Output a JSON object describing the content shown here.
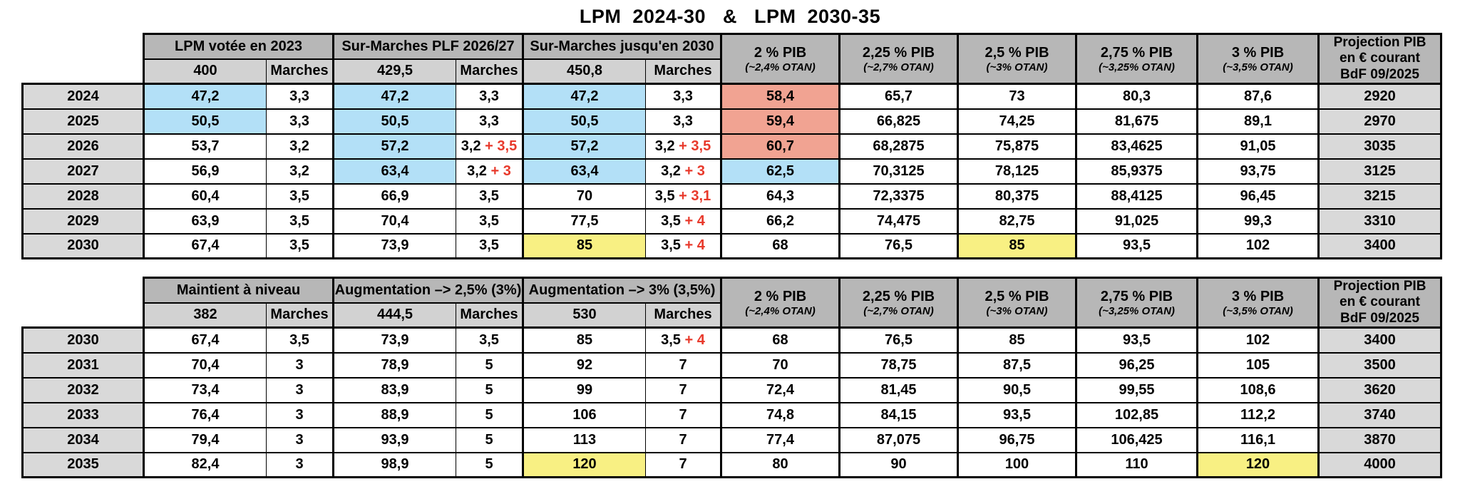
{
  "title": "LPM  2024-30   &   LPM  2030-35",
  "colors": {
    "cell_blue": "#b3e0f7",
    "cell_salmon": "#f1a392",
    "cell_yellow": "#f8f083",
    "cell_gray": "#d9d9d9",
    "header_gray": "#b7b7b7",
    "subheader_gray": "#d2d2d2",
    "red_text": "#e8392b"
  },
  "shared_header": {
    "marches_label": "Marches",
    "pib_columns": [
      {
        "label": "2 % PIB",
        "otan": "(~2,4% OTAN)"
      },
      {
        "label": "2,25 % PIB",
        "otan": "(~2,7% OTAN)"
      },
      {
        "label": "2,5 % PIB",
        "otan": "(~3% OTAN)"
      },
      {
        "label": "2,75 % PIB",
        "otan": "(~3,25% OTAN)"
      },
      {
        "label": "3 % PIB",
        "otan": "(~3,5% OTAN)"
      }
    ],
    "projection_label": "Projection PIB\nen € courant\nBdF 09/2025"
  },
  "tables": [
    {
      "name": "lpm-2024-30",
      "groups": [
        {
          "label": "LPM votée en 2023",
          "total": "400"
        },
        {
          "label": "Sur-Marches PLF 2026/27",
          "total": "429,5"
        },
        {
          "label": "Sur-Marches  jusqu'en 2030",
          "total": "450,8"
        }
      ],
      "rows": [
        {
          "year": "2024",
          "cells": [
            {
              "v": "47,2",
              "bg": "blue"
            },
            {
              "v": "3,3"
            },
            {
              "v": "47,2",
              "bg": "blue"
            },
            {
              "v": "3,3"
            },
            {
              "v": "47,2",
              "bg": "blue"
            },
            {
              "v": "3,3"
            },
            {
              "v": "58,4",
              "bg": "salmon"
            },
            {
              "v": "65,7"
            },
            {
              "v": "73"
            },
            {
              "v": "80,3"
            },
            {
              "v": "87,6"
            },
            {
              "v": "2920",
              "bg": "gray"
            }
          ]
        },
        {
          "year": "2025",
          "cells": [
            {
              "v": "50,5",
              "bg": "blue"
            },
            {
              "v": "3,3"
            },
            {
              "v": "50,5",
              "bg": "blue"
            },
            {
              "v": "3,3"
            },
            {
              "v": "50,5",
              "bg": "blue"
            },
            {
              "v": "3,3"
            },
            {
              "v": "59,4",
              "bg": "salmon"
            },
            {
              "v": "66,825"
            },
            {
              "v": "74,25"
            },
            {
              "v": "81,675"
            },
            {
              "v": "89,1"
            },
            {
              "v": "2970",
              "bg": "gray"
            }
          ]
        },
        {
          "year": "2026",
          "cells": [
            {
              "v": "53,7"
            },
            {
              "v": "3,2"
            },
            {
              "v": "57,2",
              "bg": "blue"
            },
            {
              "v": "3,2",
              "r": "+ 3,5"
            },
            {
              "v": "57,2",
              "bg": "blue"
            },
            {
              "v": "3,2",
              "r": "+ 3,5"
            },
            {
              "v": "60,7",
              "bg": "salmon"
            },
            {
              "v": "68,2875"
            },
            {
              "v": "75,875"
            },
            {
              "v": "83,4625"
            },
            {
              "v": "91,05"
            },
            {
              "v": "3035",
              "bg": "gray"
            }
          ]
        },
        {
          "year": "2027",
          "cells": [
            {
              "v": "56,9"
            },
            {
              "v": "3,2"
            },
            {
              "v": "63,4",
              "bg": "blue"
            },
            {
              "v": "3,2",
              "r": "+ 3"
            },
            {
              "v": "63,4",
              "bg": "blue"
            },
            {
              "v": "3,2",
              "r": "+ 3"
            },
            {
              "v": "62,5",
              "bg": "blue"
            },
            {
              "v": "70,3125"
            },
            {
              "v": "78,125"
            },
            {
              "v": "85,9375"
            },
            {
              "v": "93,75"
            },
            {
              "v": "3125",
              "bg": "gray"
            }
          ]
        },
        {
          "year": "2028",
          "cells": [
            {
              "v": "60,4"
            },
            {
              "v": "3,5"
            },
            {
              "v": "66,9"
            },
            {
              "v": "3,5"
            },
            {
              "v": "70"
            },
            {
              "v": "3,5",
              "r": "+ 3,1"
            },
            {
              "v": "64,3"
            },
            {
              "v": "72,3375"
            },
            {
              "v": "80,375"
            },
            {
              "v": "88,4125"
            },
            {
              "v": "96,45"
            },
            {
              "v": "3215",
              "bg": "gray"
            }
          ]
        },
        {
          "year": "2029",
          "cells": [
            {
              "v": "63,9"
            },
            {
              "v": "3,5"
            },
            {
              "v": "70,4"
            },
            {
              "v": "3,5"
            },
            {
              "v": "77,5"
            },
            {
              "v": "3,5",
              "r": "+ 4"
            },
            {
              "v": "66,2"
            },
            {
              "v": "74,475"
            },
            {
              "v": "82,75"
            },
            {
              "v": "91,025"
            },
            {
              "v": "99,3"
            },
            {
              "v": "3310",
              "bg": "gray"
            }
          ]
        },
        {
          "year": "2030",
          "cells": [
            {
              "v": "67,4"
            },
            {
              "v": "3,5"
            },
            {
              "v": "73,9"
            },
            {
              "v": "3,5"
            },
            {
              "v": "85",
              "bg": "yellow"
            },
            {
              "v": "3,5",
              "r": "+ 4"
            },
            {
              "v": "68"
            },
            {
              "v": "76,5"
            },
            {
              "v": "85",
              "bg": "yellow"
            },
            {
              "v": "93,5"
            },
            {
              "v": "102"
            },
            {
              "v": "3400",
              "bg": "gray"
            }
          ]
        }
      ]
    },
    {
      "name": "lpm-2030-35",
      "groups": [
        {
          "label": "Maintient à niveau",
          "total": "382"
        },
        {
          "label": "Augmentation –>  2,5%  (3%)",
          "total": "444,5"
        },
        {
          "label": "Augmentation –>  3%  (3,5%)",
          "total": "530"
        }
      ],
      "rows": [
        {
          "year": "2030",
          "cells": [
            {
              "v": "67,4"
            },
            {
              "v": "3,5"
            },
            {
              "v": "73,9"
            },
            {
              "v": "3,5"
            },
            {
              "v": "85"
            },
            {
              "v": "3,5",
              "r": "+ 4"
            },
            {
              "v": "68"
            },
            {
              "v": "76,5"
            },
            {
              "v": "85"
            },
            {
              "v": "93,5"
            },
            {
              "v": "102"
            },
            {
              "v": "3400",
              "bg": "gray"
            }
          ]
        },
        {
          "year": "2031",
          "cells": [
            {
              "v": "70,4"
            },
            {
              "v": "3"
            },
            {
              "v": "78,9"
            },
            {
              "v": "5"
            },
            {
              "v": "92"
            },
            {
              "v": "7"
            },
            {
              "v": "70"
            },
            {
              "v": "78,75"
            },
            {
              "v": "87,5"
            },
            {
              "v": "96,25"
            },
            {
              "v": "105"
            },
            {
              "v": "3500",
              "bg": "gray"
            }
          ]
        },
        {
          "year": "2032",
          "cells": [
            {
              "v": "73,4"
            },
            {
              "v": "3"
            },
            {
              "v": "83,9"
            },
            {
              "v": "5"
            },
            {
              "v": "99"
            },
            {
              "v": "7"
            },
            {
              "v": "72,4"
            },
            {
              "v": "81,45"
            },
            {
              "v": "90,5"
            },
            {
              "v": "99,55"
            },
            {
              "v": "108,6"
            },
            {
              "v": "3620",
              "bg": "gray"
            }
          ]
        },
        {
          "year": "2033",
          "cells": [
            {
              "v": "76,4"
            },
            {
              "v": "3"
            },
            {
              "v": "88,9"
            },
            {
              "v": "5"
            },
            {
              "v": "106"
            },
            {
              "v": "7"
            },
            {
              "v": "74,8"
            },
            {
              "v": "84,15"
            },
            {
              "v": "93,5"
            },
            {
              "v": "102,85"
            },
            {
              "v": "112,2"
            },
            {
              "v": "3740",
              "bg": "gray"
            }
          ]
        },
        {
          "year": "2034",
          "cells": [
            {
              "v": "79,4"
            },
            {
              "v": "3"
            },
            {
              "v": "93,9"
            },
            {
              "v": "5"
            },
            {
              "v": "113"
            },
            {
              "v": "7"
            },
            {
              "v": "77,4"
            },
            {
              "v": "87,075"
            },
            {
              "v": "96,75"
            },
            {
              "v": "106,425"
            },
            {
              "v": "116,1"
            },
            {
              "v": "3870",
              "bg": "gray"
            }
          ]
        },
        {
          "year": "2035",
          "cells": [
            {
              "v": "82,4"
            },
            {
              "v": "3"
            },
            {
              "v": "98,9"
            },
            {
              "v": "5"
            },
            {
              "v": "120",
              "bg": "yellow"
            },
            {
              "v": "7"
            },
            {
              "v": "80"
            },
            {
              "v": "90"
            },
            {
              "v": "100"
            },
            {
              "v": "110"
            },
            {
              "v": "120",
              "bg": "yellow"
            },
            {
              "v": "4000",
              "bg": "gray"
            }
          ]
        }
      ]
    }
  ]
}
